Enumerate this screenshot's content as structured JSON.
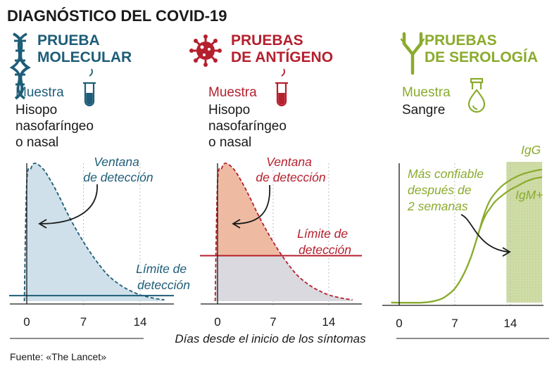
{
  "title": "DIAGNÓSTICO DEL COVID-19",
  "source": "Fuente: «The Lancet»",
  "colors": {
    "molecular": "#1e5d78",
    "antigen": "#b5202e",
    "serology": "#8aab2c"
  },
  "chart_data": {
    "type": "area",
    "xlabel": "Días desde el inicio de los síntomas",
    "x_ticks": [
      0,
      7,
      14
    ],
    "panels": [
      {
        "id": "molecular",
        "title_lines": [
          "PRUEBA",
          "MOLECULAR"
        ],
        "sample_label": "Muestra",
        "sample_lines": [
          "Hisopo",
          "nasofaríngeo",
          "o nasal"
        ],
        "icon": "dna-icon",
        "xlim": [
          -1,
          18
        ],
        "ylim": [
          0,
          1
        ],
        "series": [
          {
            "name": "Ventana de detección",
            "style": "dashed-filled",
            "x": [
              -0.3,
              0,
              0.5,
              1,
              2,
              3,
              4,
              5,
              6,
              7,
              8,
              9,
              10,
              11,
              12,
              13,
              14,
              15,
              16,
              17
            ],
            "y": [
              0.0,
              0.86,
              0.96,
              1.0,
              0.96,
              0.87,
              0.76,
              0.64,
              0.53,
              0.43,
              0.34,
              0.26,
              0.19,
              0.14,
              0.1,
              0.07,
              0.045,
              0.03,
              0.018,
              0.01
            ]
          }
        ],
        "threshold": {
          "y": 0.04,
          "label_lines": [
            "Límite de",
            "detección"
          ]
        },
        "annotation_lines": [
          "Ventana",
          "de detección"
        ]
      },
      {
        "id": "antigen",
        "title_lines": [
          "PRUEBAS",
          "DE ANTÍGENO"
        ],
        "sample_label": "Muestra",
        "sample_lines": [
          "Hisopo",
          "nasofaríngeo",
          "o nasal"
        ],
        "icon": "virus-icon",
        "xlim": [
          -1,
          18
        ],
        "ylim": [
          0,
          1
        ],
        "series": [
          {
            "name": "Ventana de detección",
            "style": "dashed-filled",
            "x": [
              -0.3,
              0,
              0.5,
              1,
              2,
              3,
              4,
              5,
              6,
              7,
              8,
              9,
              10,
              11,
              12,
              13,
              14,
              15,
              16,
              17
            ],
            "y": [
              0.0,
              0.86,
              0.96,
              1.0,
              0.96,
              0.87,
              0.76,
              0.64,
              0.53,
              0.43,
              0.34,
              0.26,
              0.19,
              0.14,
              0.1,
              0.07,
              0.045,
              0.03,
              0.018,
              0.01
            ]
          }
        ],
        "threshold": {
          "y": 0.33,
          "label_lines": [
            "Límite de",
            "detección"
          ]
        },
        "annotation_lines": [
          "Ventana",
          "de detección"
        ]
      },
      {
        "id": "serology",
        "title_lines": [
          "PRUEBAS",
          "DE SEROLOGÍA"
        ],
        "sample_label": "Muestra",
        "sample_lines": [
          "Sangre"
        ],
        "icon": "antibody-icon",
        "xlim": [
          -1,
          18
        ],
        "ylim": [
          0,
          1
        ],
        "series": [
          {
            "name": "IgG",
            "label": "IgG",
            "x": [
              -1,
              3,
              5,
              6,
              7,
              8,
              9,
              10,
              10.5,
              11,
              11.5,
              12,
              13,
              14,
              15,
              16,
              17,
              18
            ],
            "y": [
              0.0,
              0.0,
              0.02,
              0.05,
              0.1,
              0.19,
              0.32,
              0.5,
              0.6,
              0.68,
              0.74,
              0.78,
              0.84,
              0.88,
              0.91,
              0.93,
              0.945,
              0.955
            ]
          },
          {
            "name": "IgM+",
            "label": "IgM",
            "x": [
              -1,
              3,
              5,
              6,
              7,
              8,
              9,
              10,
              10.5,
              11,
              11.5,
              12,
              13,
              14,
              15,
              16,
              17,
              18
            ],
            "y": [
              0.0,
              0.0,
              0.02,
              0.05,
              0.1,
              0.19,
              0.32,
              0.5,
              0.58,
              0.64,
              0.68,
              0.72,
              0.77,
              0.81,
              0.84,
              0.87,
              0.89,
              0.9
            ]
          }
        ],
        "shaded_range": [
          13.5,
          18
        ],
        "annotation_lines": [
          "Más confiable",
          "después de",
          "2 semanas"
        ]
      }
    ]
  }
}
